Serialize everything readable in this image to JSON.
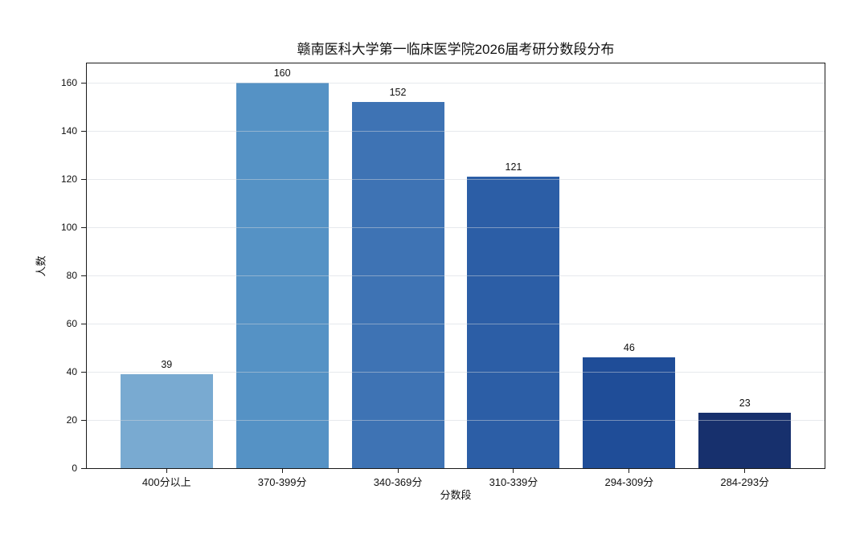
{
  "figure": {
    "background": "#ffffff",
    "axis_color": "#1a1a1a",
    "grid_color": "#dfe3e8",
    "text_color": "#111111"
  },
  "chart_data": {
    "type": "bar",
    "title": "赣南医科大学第一临床医学院2026届考研分数段分布",
    "xlabel": "分数段",
    "ylabel": "人数",
    "categories": [
      "400分以上",
      "370-399分",
      "340-369分",
      "310-339分",
      "294-309分",
      "284-293分"
    ],
    "values": [
      39,
      160,
      152,
      121,
      46,
      23
    ],
    "bar_colors": [
      "#79aad1",
      "#5592c5",
      "#3e73b4",
      "#2c5ea6",
      "#1f4d98",
      "#17306d"
    ],
    "yticks": [
      0,
      20,
      40,
      60,
      80,
      100,
      120,
      140,
      160
    ],
    "ylim": [
      0,
      168
    ],
    "grid": true,
    "grid_orientation": "horizontal",
    "legend_position": "none",
    "value_labels_shown": true
  }
}
